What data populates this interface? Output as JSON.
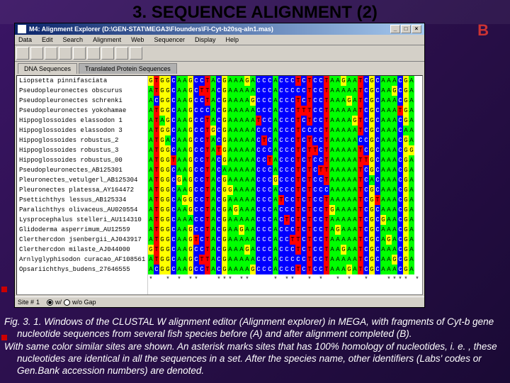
{
  "slide": {
    "title": "3. SEQUENCE ALIGNMENT (2)",
    "label_b": "B"
  },
  "window": {
    "title": "M4: Alignment Explorer (D:\\GEN-STAT\\MEGA3\\Flounders\\Fl-Cyt-b20sq-aln1.mas)",
    "btn_min": "_",
    "btn_max": "□",
    "btn_close": "×"
  },
  "menu": {
    "m0": "Data",
    "m1": "Edit",
    "m2": "Search",
    "m3": "Alignment",
    "m4": "Web",
    "m5": "Sequencer",
    "m6": "Display",
    "m7": "Help"
  },
  "tabs": {
    "t0": "DNA Sequences",
    "t1": "Translated Protein Sequences"
  },
  "species": [
    "Liopsetta pinnifasciata",
    "Pseudopleuronectes obscurus",
    "Pseudopleuronectes schrenki",
    "Pseudopleuronectes yokohamae",
    "Hippoglossoides elassodon 1",
    "Hippoglossoides elassodon 3",
    "Hippoglossoides robustus_2",
    "Hippoglossoides robustus_3",
    "Hippoglossoides robustus_00",
    "Pseudopleuronectes_AB125301",
    "Pleuronectes_vetulgerl_AB125304",
    "Pleuronectes platessa_AY164472",
    "Psettichthys lessus_AB125334",
    "Paralichthys olivaceus_AU020554",
    "Lysprocephalus stelleri_AU114310",
    "Glidoderma asperrimum_AU12559",
    "Clerthercdon jsenbergii_AJ043917",
    "Clerthercdon milaste_AJ044000",
    "Arnlyglyphisodon curacao_AF108561",
    "Opsariichthys_budens_27646555"
  ],
  "sequence_pattern": "ATGGCAAGCCTACGAAAAACCCACCCTCTCCTAAAAATCGCAAACGA",
  "consensus": "*  * * **   *** **    * **  * *  * *  *   **** *",
  "base_colors": {
    "A": "#00ff00",
    "T": "#ff0000",
    "C": "#0000ff",
    "G": "#ffff00"
  },
  "status": {
    "site_label": "Site #",
    "site_value": "1",
    "radio1": "w/",
    "radio2": "w/o Gap"
  },
  "caption": {
    "p1": "Fig. 3. 1. Windows of the CLUSTAL W alignment editor (Alignment explorer) in MEGA, with fragments of Cyt-b gene nucleotide sequences from several fish species before (A) and after alignment completed (B).",
    "p2": "With same color similar sites are shown. An asterisk marks sites that has 100% homology of nucleotides, i. e. , these nucleotides are identical in all the sequences in a set. After the species name, other identifiers (Labs' codes or Gen.Bank accession numbers) are denoted."
  }
}
